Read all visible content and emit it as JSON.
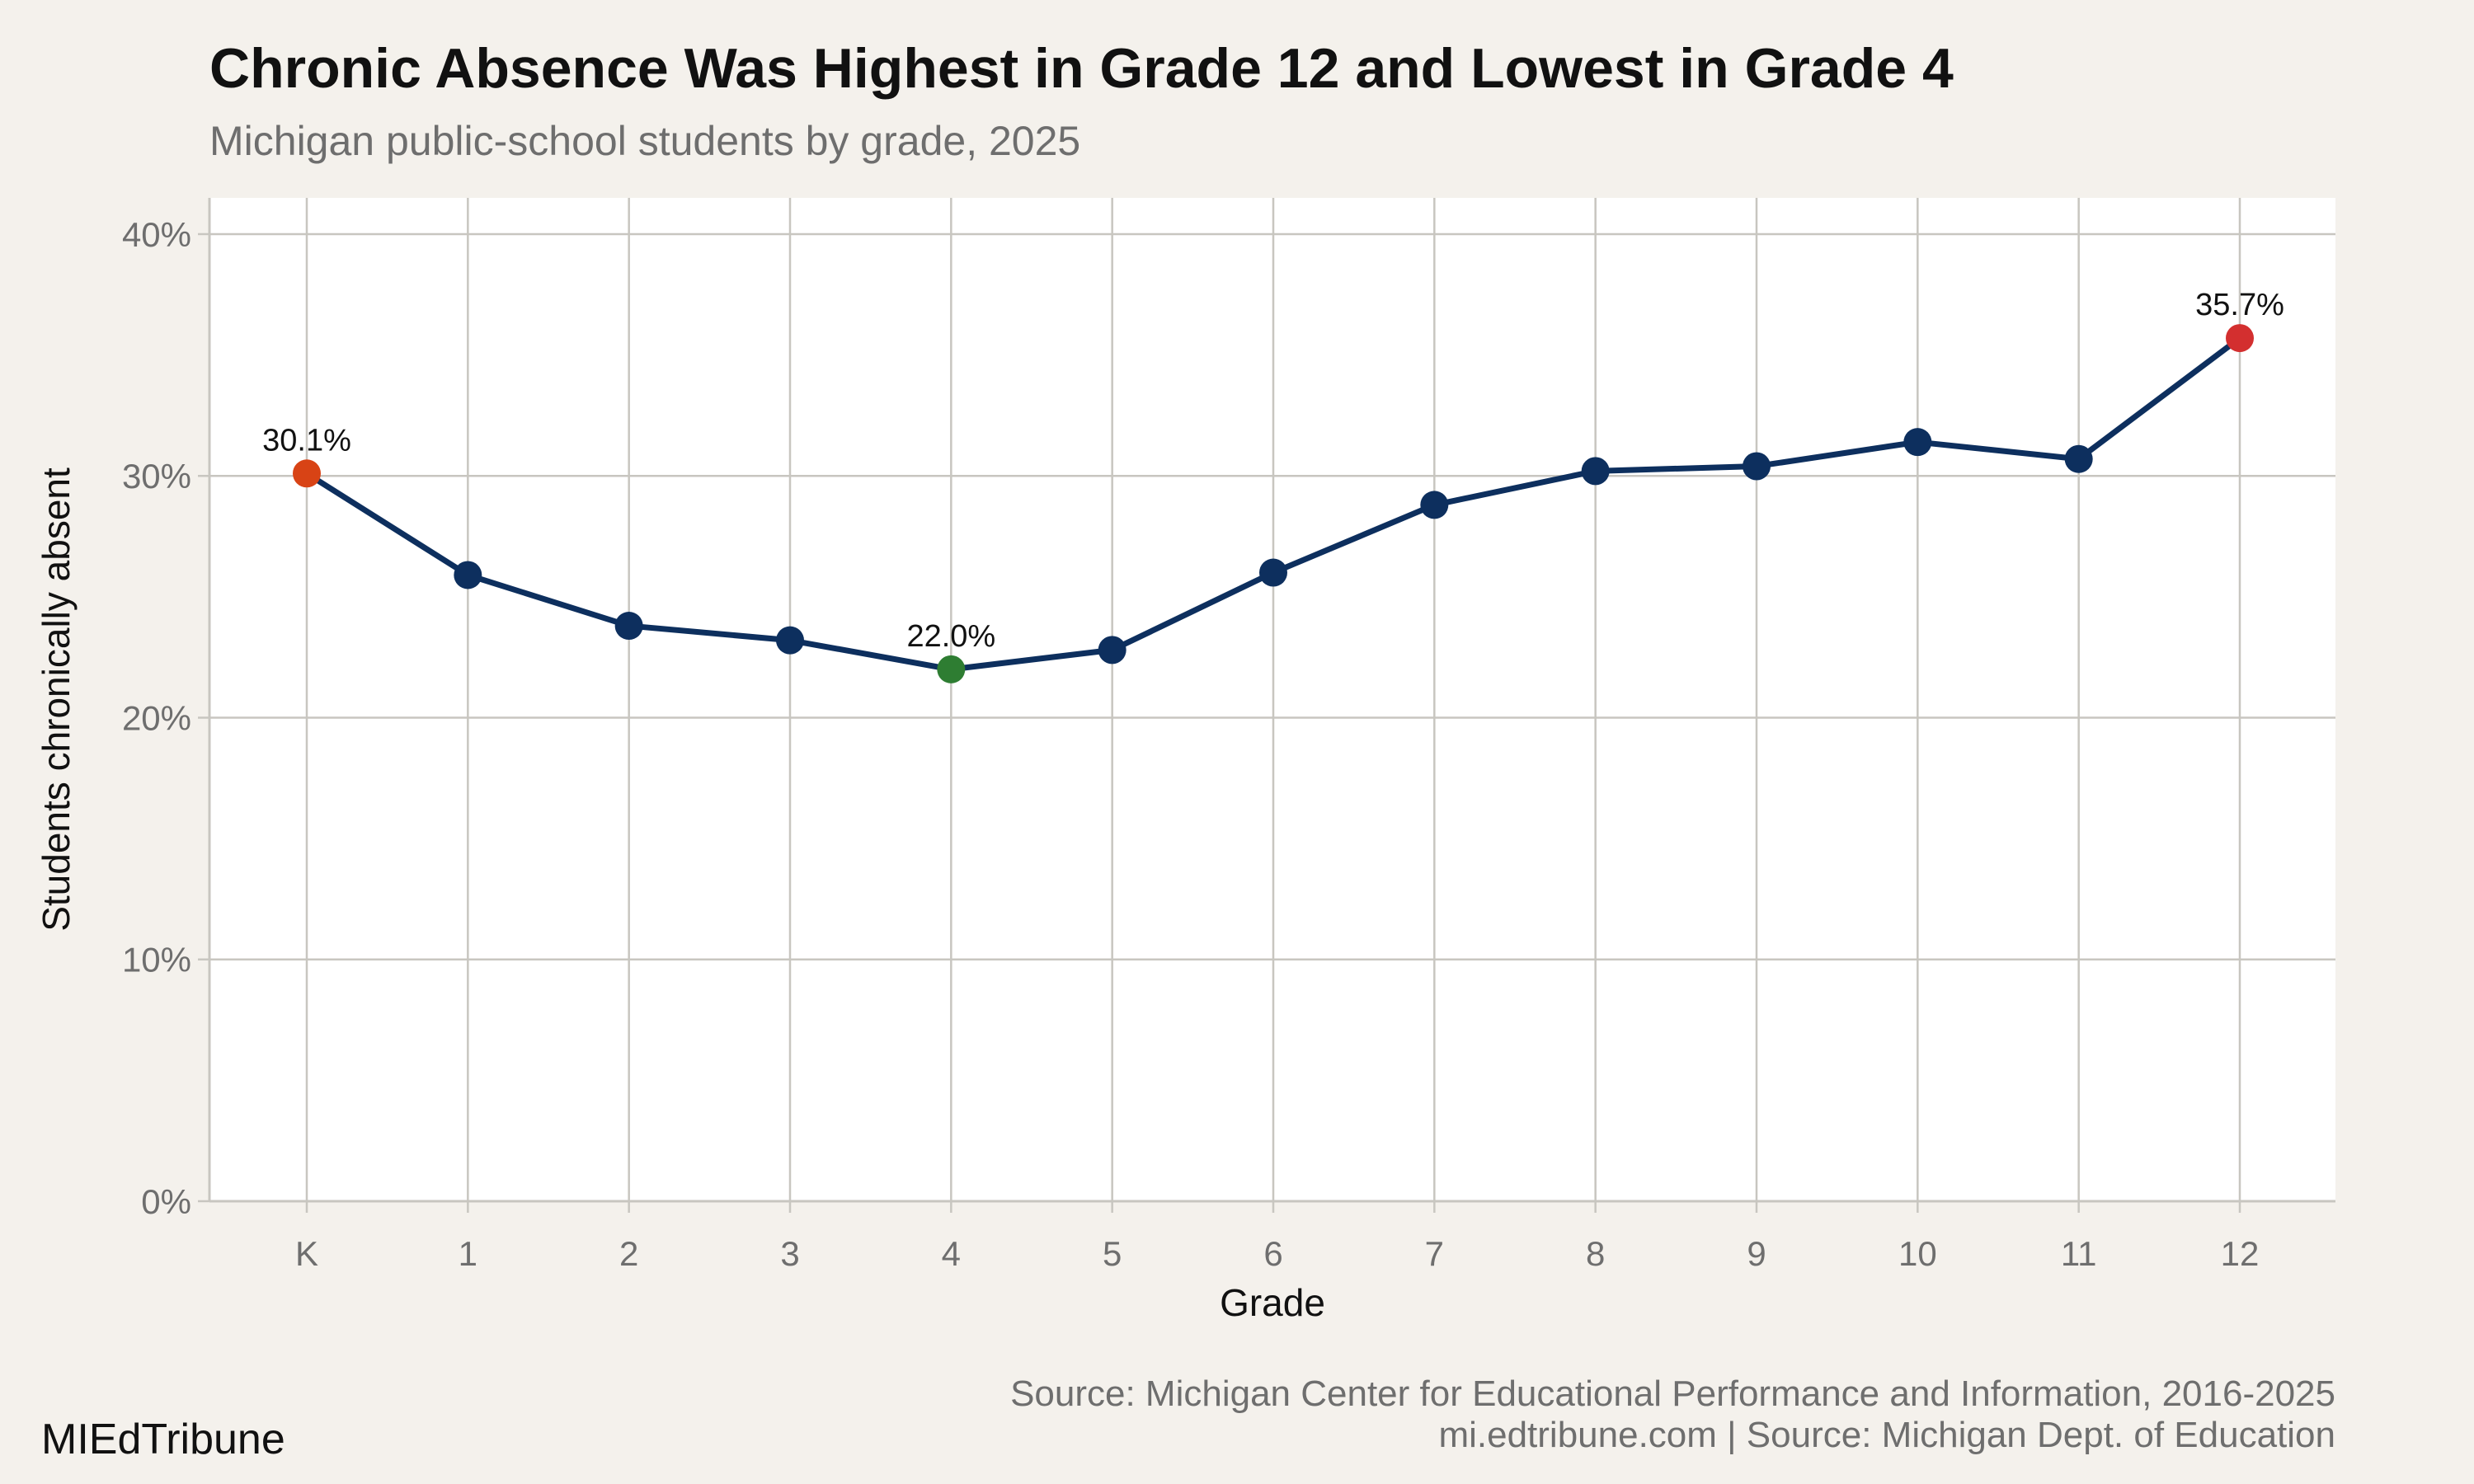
{
  "title": "Chronic Absence Was Highest in Grade 12 and Lowest in Grade 4",
  "subtitle": "Michigan public-school students by grade, 2025",
  "brand": "MIEdTribune",
  "source_line1": "Source: Michigan Center for Educational Performance and Information, 2016-2025",
  "source_line2": "mi.edtribune.com | Source: Michigan Dept. of Education",
  "colors": {
    "background": "#f4f1ec",
    "panel": "#ffffff",
    "grid": "#c8c6c0",
    "line": "#0d2f5e",
    "highlight_low": "#2e7d32",
    "highlight_high": "#d32f2f",
    "highlight_first": "#d84315"
  },
  "chart_data": {
    "type": "line",
    "xlabel": "Grade",
    "ylabel": "Students chronically absent",
    "categories": [
      "K",
      "1",
      "2",
      "3",
      "4",
      "5",
      "6",
      "7",
      "8",
      "9",
      "10",
      "11",
      "12"
    ],
    "values": [
      30.1,
      25.9,
      23.8,
      23.2,
      22.0,
      22.8,
      26.0,
      28.8,
      30.2,
      30.4,
      31.4,
      30.7,
      35.7
    ],
    "ylim": [
      0,
      41.5
    ],
    "yticks": [
      0,
      10,
      20,
      30,
      40
    ],
    "ytick_labels": [
      "0%",
      "10%",
      "20%",
      "30%",
      "40%"
    ],
    "grid": true,
    "annotations": [
      {
        "category": "K",
        "value": 30.1,
        "label": "30.1%",
        "color_key": "highlight_first"
      },
      {
        "category": "4",
        "value": 22.0,
        "label": "22.0%",
        "color_key": "highlight_low"
      },
      {
        "category": "12",
        "value": 35.7,
        "label": "35.7%",
        "color_key": "highlight_high"
      }
    ]
  }
}
